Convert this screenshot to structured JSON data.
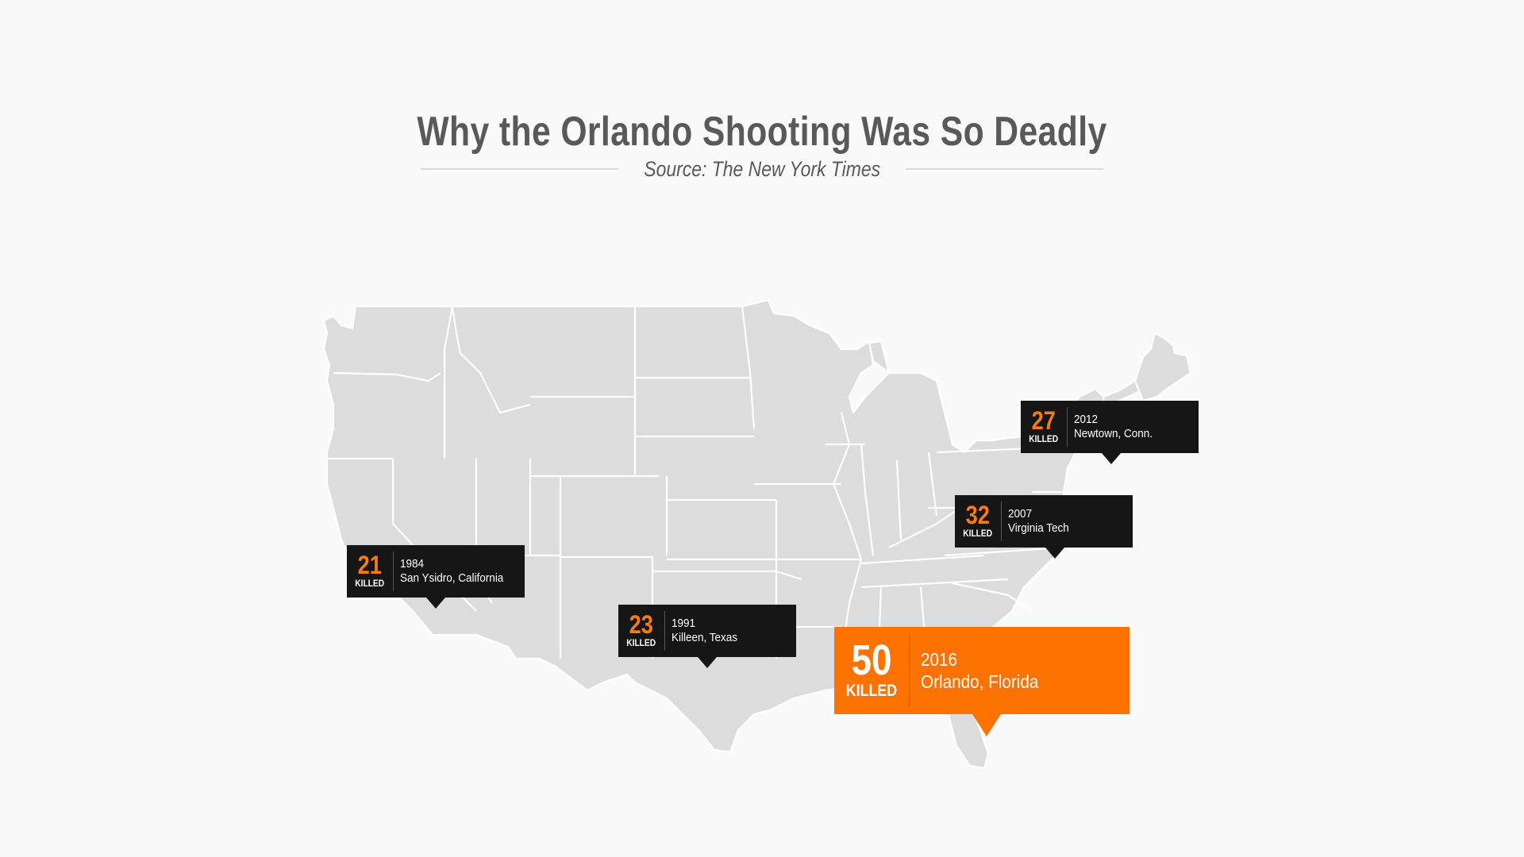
{
  "header": {
    "title": "Why the Orlando Shooting Was So Deadly",
    "source": "Source: The New York Times"
  },
  "map": {
    "region": "United States",
    "land_color": "#dcdcdc",
    "border_color": "#ffffff"
  },
  "events": [
    {
      "count": "27",
      "killed_label": "KILLED",
      "year": "2012",
      "place": "Newtown, Conn."
    },
    {
      "count": "32",
      "killed_label": "KILLED",
      "year": "2007",
      "place": "Virginia Tech"
    },
    {
      "count": "21",
      "killed_label": "KILLED",
      "year": "1984",
      "place": "San Ysidro, California"
    },
    {
      "count": "23",
      "killed_label": "KILLED",
      "year": "1991",
      "place": "Killeen, Texas"
    },
    {
      "count": "50",
      "killed_label": "KILLED",
      "year": "2016",
      "place": "Orlando, Florida"
    }
  ],
  "colors": {
    "callout_dark": "#161616",
    "highlight": "#fe7201",
    "count_orange": "#f97a16",
    "title_gray": "#595959"
  }
}
